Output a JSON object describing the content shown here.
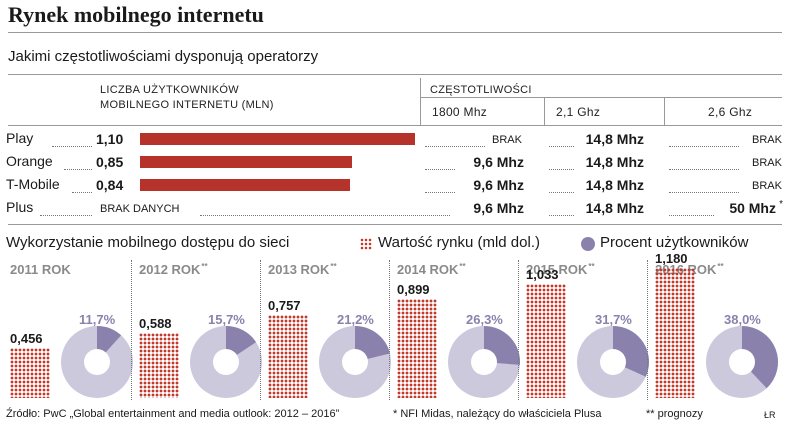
{
  "title": "Rynek mobilnego internetu",
  "subtitle": "Jakimi częstotliwościami dysponują operatorzy",
  "table": {
    "users_header_line1": "LICZBA UŻYTKOWNIKÓW",
    "users_header_line2": "MOBILNEGO INTERNETU (MLN)",
    "freq_header": "CZĘSTOTLIWOŚCI",
    "freq_columns": [
      "1800 Mhz",
      "2,1 Ghz",
      "2,6 Ghz"
    ],
    "rows": [
      {
        "operator": "Play",
        "users_label": "1,10",
        "users": 1.1,
        "f1800": "BRAK",
        "f21": "14,8 Mhz",
        "f26": "BRAK"
      },
      {
        "operator": "Orange",
        "users_label": "0,85",
        "users": 0.85,
        "f1800": "9,6 Mhz",
        "f21": "14,8 Mhz",
        "f26": "BRAK"
      },
      {
        "operator": "T-Mobile",
        "users_label": "0,84",
        "users": 0.84,
        "f1800": "9,6 Mhz",
        "f21": "14,8 Mhz",
        "f26": "BRAK"
      },
      {
        "operator": "Plus",
        "users_label": "BRAK DANYCH",
        "users": null,
        "f1800": "9,6 Mhz",
        "f21": "14,8 Mhz",
        "f26": "50 Mhz",
        "f26_mark": "*"
      }
    ]
  },
  "section2": {
    "title": "Wykorzystanie mobilnego dostępu do sieci",
    "legend_market": "Wartość rynku (mld dol.)",
    "legend_users": "Procent użytkowników"
  },
  "colors": {
    "bar": "#b5332b",
    "pie_light": "#cdc9dd",
    "pie_dark": "#8a82ad",
    "dots": "#c0392b"
  },
  "chart_data": [
    {
      "type": "bar",
      "categories": [
        "Play",
        "Orange",
        "T-Mobile",
        "Plus"
      ],
      "values": [
        1.1,
        0.85,
        0.84,
        null
      ],
      "title": "",
      "xlabel": "",
      "ylabel": "LICZBA UŻYTKOWNIKÓW MOBILNEGO INTERNETU (MLN)",
      "ylim": [
        0,
        1.1
      ]
    },
    {
      "type": "bar",
      "categories": [
        "2011 ROK",
        "2012 ROK",
        "2013 ROK",
        "2014 ROK",
        "2015 ROK",
        "2016 ROK"
      ],
      "series": [
        {
          "name": "Wartość rynku (mld dol.)",
          "values": [
            0.456,
            0.588,
            0.757,
            0.899,
            1.033,
            1.18
          ],
          "labels": [
            "0,456",
            "0,588",
            "0,757",
            "0,899",
            "1,033",
            "1,180"
          ]
        },
        {
          "name": "Procent użytkowników",
          "values": [
            11.7,
            15.7,
            21.2,
            26.3,
            31.7,
            38.0
          ],
          "labels": [
            "11,7%",
            "15,7%",
            "21,2%",
            "26,3%",
            "31,7%",
            "38,0%"
          ]
        }
      ],
      "year_marks": [
        "",
        "**",
        "**",
        "**",
        "**",
        "**"
      ]
    }
  ],
  "footer": {
    "source": "Źródło: PwC „Global entertainment and media outlook: 2012 – 2016”",
    "note1": "* NFI Midas, należący do właściciela Plusa",
    "note2": "** prognozy",
    "credit": "ŁR"
  }
}
